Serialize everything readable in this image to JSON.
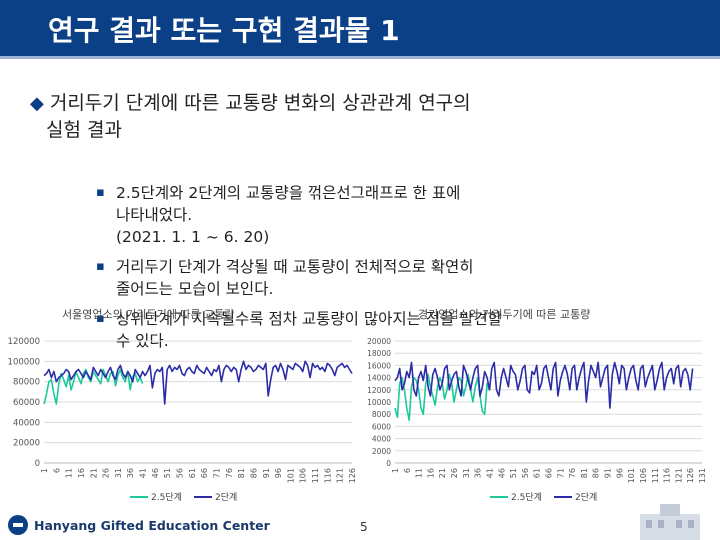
{
  "slide": {
    "title": "연구 결과 또는 구현 결과물 1",
    "heading_line1": "거리두기 단계에 따른 교통량 변화의 상관관계 연구의",
    "heading_line2": "실험 결과",
    "heading_marker": "◆",
    "bullet_marker": "▪",
    "bullets": [
      {
        "line1": "2.5단계와 2단계의 교통량을 꺾은선그래프로 한 표에",
        "line2": "나타내었다.",
        "line3": "(2021. 1. 1 ~ 6. 20)"
      },
      {
        "line1": "거리두기 단계가 격상될 때 교통량이 전체적으로 확연히",
        "line2": "줄어드는 모습이 보인다."
      },
      {
        "line1": "상위단계가 지속될수록 점차 교통량이 많아지는 점을 발견할",
        "line2": "수 있다."
      }
    ],
    "footer_text": "Hanyang Gifted Education Center",
    "page_number": "5"
  },
  "chart_data": [
    {
      "type": "line",
      "title": "서울영업소의 거리두기에 따른 교통량",
      "ylim": [
        0,
        120000
      ],
      "yticks": [
        "0",
        "20000",
        "40000",
        "60000",
        "80000",
        "100000",
        "120000"
      ],
      "xticks": [
        "1",
        "6",
        "11",
        "16",
        "21",
        "26",
        "31",
        "36",
        "41",
        "46",
        "51",
        "56",
        "61",
        "66",
        "71",
        "76",
        "81",
        "86",
        "91",
        "96",
        "101",
        "106",
        "111",
        "116",
        "121",
        "126"
      ],
      "legend_position": "bottom",
      "grid": true,
      "series": [
        {
          "name": "2.5단계",
          "color": "#1dc99a",
          "values": [
            58000,
            68000,
            80000,
            82000,
            68000,
            58000,
            78000,
            88000,
            82000,
            75000,
            86000,
            72000,
            80000,
            90000,
            84000,
            78000,
            88000,
            92000,
            84000,
            80000,
            90000,
            86000,
            82000,
            78000,
            92000,
            86000,
            80000,
            88000,
            90000,
            76000,
            86000,
            92000,
            84000,
            80000,
            90000,
            72000,
            85000,
            88000,
            80000,
            84000,
            78000
          ]
        },
        {
          "name": "2단계",
          "color": "#2c2ca8",
          "values": [
            86000,
            88000,
            92000,
            84000,
            90000,
            80000,
            84000,
            86000,
            88000,
            92000,
            90000,
            82000,
            86000,
            90000,
            92000,
            88000,
            84000,
            90000,
            86000,
            82000,
            94000,
            90000,
            86000,
            92000,
            88000,
            84000,
            90000,
            94000,
            86000,
            82000,
            92000,
            96000,
            88000,
            84000,
            90000,
            86000,
            80000,
            92000,
            88000,
            84000,
            90000,
            86000,
            90000,
            96000,
            74000,
            88000,
            92000,
            90000,
            94000,
            58000,
            92000,
            96000,
            90000,
            94000,
            92000,
            96000,
            88000,
            86000,
            92000,
            94000,
            90000,
            88000,
            96000,
            92000,
            90000,
            88000,
            94000,
            90000,
            86000,
            92000,
            90000,
            96000,
            80000,
            92000,
            96000,
            94000,
            90000,
            94000,
            92000,
            80000,
            92000,
            100000,
            92000,
            96000,
            94000,
            90000,
            92000,
            96000,
            94000,
            92000,
            98000,
            66000,
            82000,
            94000,
            96000,
            90000,
            98000,
            92000,
            82000,
            96000,
            94000,
            92000,
            98000,
            96000,
            94000,
            90000,
            100000,
            96000,
            84000,
            98000,
            94000,
            96000,
            92000,
            94000,
            90000,
            98000,
            96000,
            92000,
            86000,
            94000,
            96000,
            98000,
            94000,
            96000,
            92000,
            88000
          ]
        }
      ]
    },
    {
      "type": "line",
      "title": "경기영업소의 거리두기에 따른 교통량",
      "ylim": [
        0,
        20000
      ],
      "yticks": [
        "0",
        "2000",
        "4000",
        "6000",
        "8000",
        "10000",
        "12000",
        "14000",
        "16000",
        "18000",
        "20000"
      ],
      "xticks": [
        "1",
        "6",
        "11",
        "16",
        "21",
        "26",
        "31",
        "36",
        "41",
        "46",
        "51",
        "56",
        "61",
        "66",
        "71",
        "76",
        "81",
        "86",
        "91",
        "96",
        "101",
        "106",
        "111",
        "116",
        "121",
        "126",
        "131"
      ],
      "legend_position": "bottom",
      "grid": true,
      "series": [
        {
          "name": "2.5단계",
          "color": "#1dc99a",
          "values": [
            9000,
            7500,
            13000,
            14000,
            12000,
            9000,
            7000,
            12500,
            14000,
            13500,
            12000,
            9000,
            8000,
            13000,
            14500,
            12500,
            11000,
            9500,
            12500,
            14000,
            13000,
            10500,
            12000,
            14500,
            13000,
            10000,
            12000,
            14000,
            13500,
            11000,
            12500,
            14500,
            12000,
            10000,
            12500,
            14000,
            11000,
            8500,
            8000,
            13000,
            12000
          ]
        },
        {
          "name": "2단계",
          "color": "#2c2ca8",
          "values": [
            13500,
            14000,
            15500,
            12000,
            13000,
            15000,
            14000,
            16500,
            12000,
            11000,
            14000,
            15000,
            13500,
            16000,
            12500,
            11000,
            14500,
            15500,
            14000,
            12000,
            13000,
            15500,
            16000,
            12000,
            13500,
            14500,
            15000,
            12500,
            11000,
            16000,
            15000,
            13500,
            12000,
            14000,
            15500,
            16000,
            11000,
            12500,
            15000,
            14000,
            12000,
            15500,
            16500,
            12000,
            11000,
            14000,
            15500,
            14000,
            12500,
            16000,
            15000,
            14500,
            12000,
            13500,
            15500,
            16000,
            12000,
            11500,
            15000,
            14500,
            16000,
            12000,
            13000,
            15500,
            16000,
            14000,
            12000,
            15500,
            16500,
            11000,
            13500,
            15000,
            16000,
            14500,
            12000,
            15500,
            16000,
            12000,
            14000,
            15500,
            16500,
            10000,
            13500,
            16000,
            15000,
            14000,
            16500,
            12500,
            14000,
            15500,
            16000,
            9000,
            14500,
            16500,
            15000,
            13000,
            16000,
            15500,
            12000,
            14000,
            15500,
            16000,
            13500,
            12000,
            15500,
            16000,
            12500,
            14000,
            15000,
            16000,
            12000,
            13500,
            15500,
            16500,
            12000,
            14000,
            15000,
            15500,
            13000,
            15500,
            16000,
            12500,
            15000,
            15500,
            14500,
            12000,
            15500
          ]
        }
      ]
    }
  ]
}
